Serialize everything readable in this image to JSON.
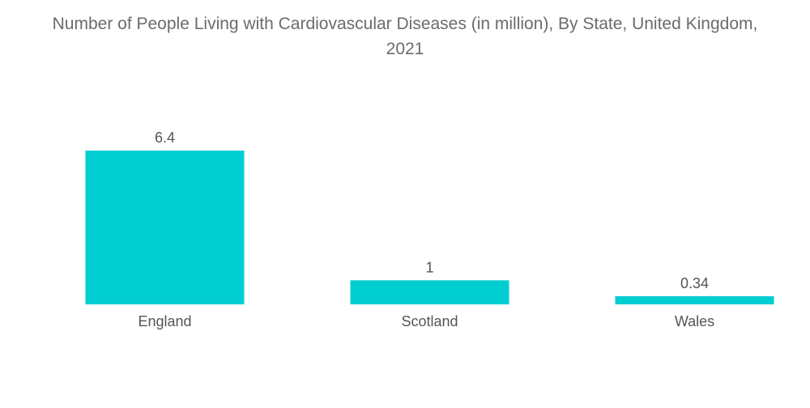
{
  "chart_data": {
    "type": "bar",
    "title": "Number of People Living with Cardiovascular Diseases (in million), By State, United Kingdom, 2021",
    "categories": [
      "England",
      "Scotland",
      "Wales"
    ],
    "values": [
      6.4,
      1,
      0.34
    ],
    "value_labels": [
      "6.4",
      "1",
      "0.34"
    ],
    "xlabel": "",
    "ylabel": "",
    "ylim": [
      0,
      6.4
    ],
    "grid": false,
    "legend": "none",
    "bar_color": "#00CED1"
  }
}
